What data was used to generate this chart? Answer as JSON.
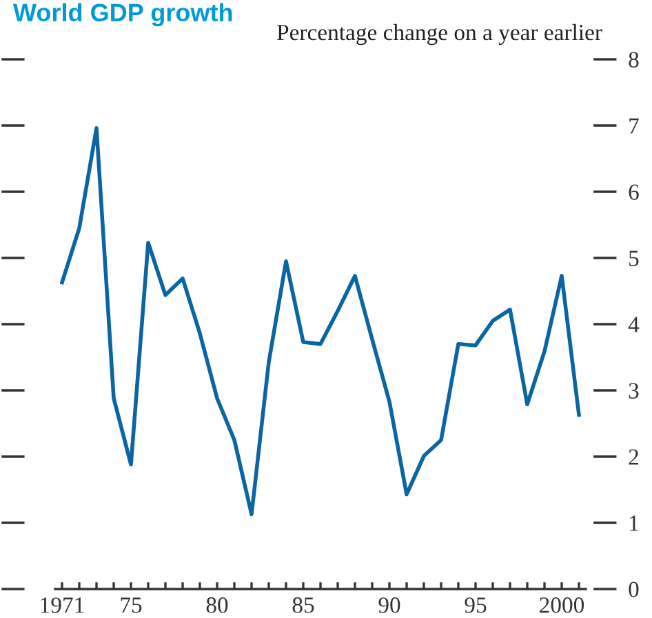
{
  "chart_data": {
    "type": "line",
    "title": "World GDP growth",
    "ylabel": "Percentage change on a year earlier",
    "x": [
      1971,
      1972,
      1973,
      1974,
      1975,
      1976,
      1977,
      1978,
      1979,
      1980,
      1981,
      1982,
      1983,
      1984,
      1985,
      1986,
      1987,
      1988,
      1989,
      1990,
      1991,
      1992,
      1993,
      1994,
      1995,
      1996,
      1997,
      1998,
      1999,
      2000,
      2001
    ],
    "series": [
      {
        "color": "#0b65a3",
        "values": [
          4.63,
          5.45,
          6.96,
          2.88,
          1.88,
          5.23,
          4.44,
          4.69,
          3.86,
          2.88,
          2.25,
          1.13,
          3.43,
          4.95,
          3.73,
          3.7,
          4.2,
          4.73,
          3.77,
          2.83,
          1.43,
          2.01,
          2.25,
          3.7,
          3.68,
          4.05,
          4.22,
          2.79,
          3.59,
          4.73,
          2.63
        ]
      }
    ],
    "xlim": [
      1970.6,
      2001.4
    ],
    "ylim": [
      0,
      8
    ],
    "yticks": [
      0,
      1,
      2,
      3,
      4,
      5,
      6,
      7,
      8
    ],
    "xticks": [
      {
        "value": 1971,
        "label": "1971"
      },
      {
        "value": 1972,
        "label": null
      },
      {
        "value": 1973,
        "label": null
      },
      {
        "value": 1974,
        "label": null
      },
      {
        "value": 1975,
        "label": "75"
      },
      {
        "value": 1976,
        "label": null
      },
      {
        "value": 1977,
        "label": null
      },
      {
        "value": 1978,
        "label": null
      },
      {
        "value": 1979,
        "label": null
      },
      {
        "value": 1980,
        "label": "80"
      },
      {
        "value": 1981,
        "label": null
      },
      {
        "value": 1982,
        "label": null
      },
      {
        "value": 1983,
        "label": null
      },
      {
        "value": 1984,
        "label": null
      },
      {
        "value": 1985,
        "label": "85"
      },
      {
        "value": 1986,
        "label": null
      },
      {
        "value": 1987,
        "label": null
      },
      {
        "value": 1988,
        "label": null
      },
      {
        "value": 1989,
        "label": null
      },
      {
        "value": 1990,
        "label": "90"
      },
      {
        "value": 1991,
        "label": null
      },
      {
        "value": 1992,
        "label": null
      },
      {
        "value": 1993,
        "label": null
      },
      {
        "value": 1994,
        "label": null
      },
      {
        "value": 1995,
        "label": "95"
      },
      {
        "value": 1996,
        "label": null
      },
      {
        "value": 1997,
        "label": null
      },
      {
        "value": 1998,
        "label": null
      },
      {
        "value": 1999,
        "label": null
      },
      {
        "value": 2000,
        "label": "2000"
      },
      {
        "value": 2001,
        "label": null
      }
    ],
    "grid": false,
    "marker": "none",
    "line_style": "solid",
    "legend": false
  }
}
